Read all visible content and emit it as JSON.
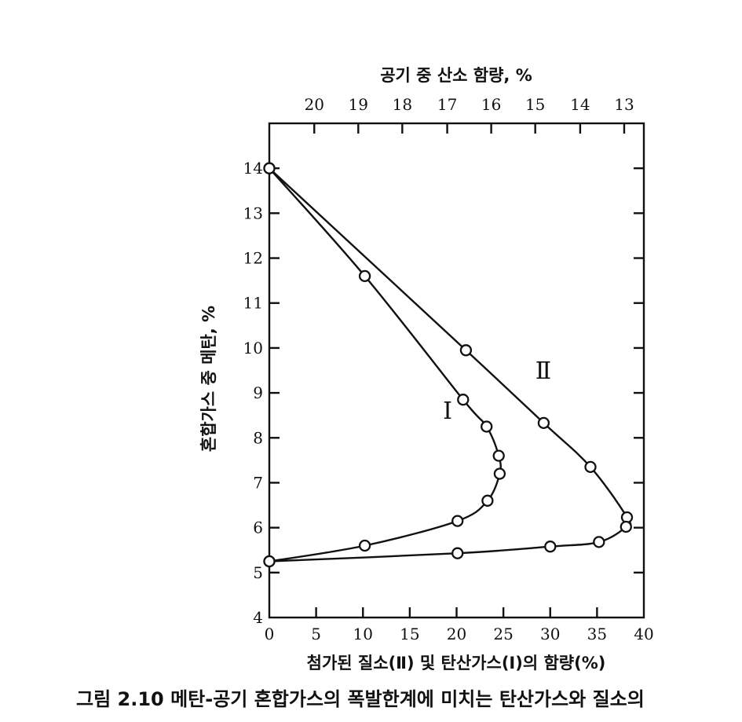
{
  "figure": {
    "caption": "그림 2.10  메탄-공기 혼합가스의 폭발한계에 미치는 탄산가스와 질소의"
  },
  "chart_data": {
    "type": "line",
    "title": "",
    "xlabel": "첨가된 질소(Ⅱ) 및 탄산가스(Ⅰ)의 함량(%)",
    "ylabel": "혼합가스 중 메탄, %",
    "x2label": "공기 중 산소 함량, %",
    "xlim": [
      0,
      40
    ],
    "ylim": [
      4,
      15
    ],
    "x_ticks": [
      0,
      5,
      10,
      15,
      20,
      25,
      30,
      35,
      40
    ],
    "y_ticks": [
      4,
      5,
      6,
      7,
      8,
      9,
      10,
      11,
      12,
      13,
      14
    ],
    "top_ticks": [
      {
        "label": "20",
        "x": 4.8
      },
      {
        "label": "19",
        "x": 9.5
      },
      {
        "label": "18",
        "x": 14.2
      },
      {
        "label": "17",
        "x": 19.0
      },
      {
        "label": "16",
        "x": 23.7
      },
      {
        "label": "15",
        "x": 28.4
      },
      {
        "label": "14",
        "x": 33.2
      },
      {
        "label": "13",
        "x": 37.9
      }
    ],
    "grid": false,
    "series": [
      {
        "name": "Ⅰ",
        "x": [
          0,
          10.2,
          20.7,
          23.2,
          24.5,
          24.6,
          23.3,
          20.1,
          10.2,
          0
        ],
        "y": [
          14.0,
          11.6,
          8.85,
          8.25,
          7.6,
          7.2,
          6.6,
          6.15,
          5.6,
          5.25
        ]
      },
      {
        "name": "Ⅱ",
        "x": [
          0,
          21.0,
          29.3,
          34.3,
          38.2,
          38.1,
          35.2,
          30.0,
          20.1,
          0
        ],
        "y": [
          14.0,
          9.95,
          8.33,
          7.35,
          6.23,
          6.02,
          5.68,
          5.58,
          5.43,
          5.25
        ]
      }
    ]
  }
}
